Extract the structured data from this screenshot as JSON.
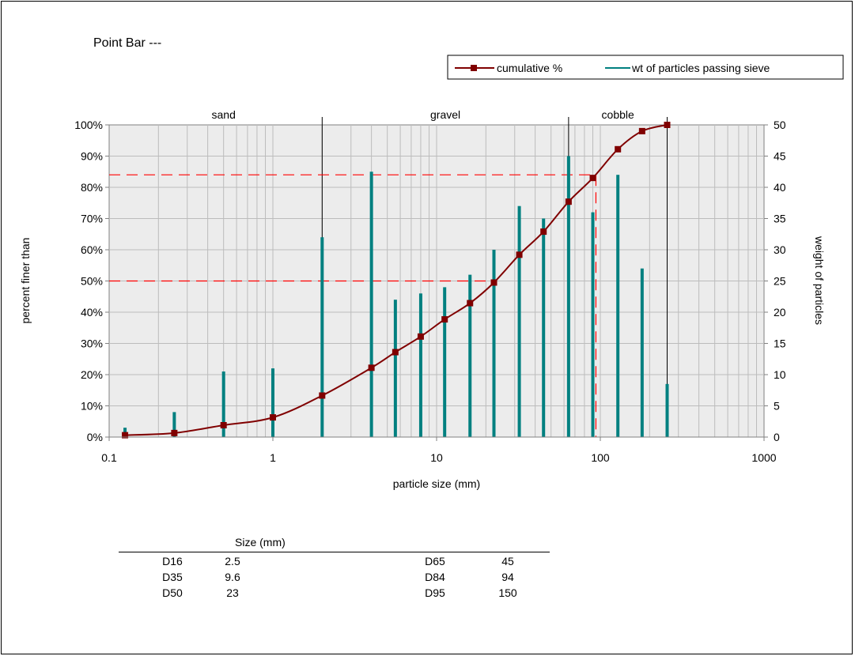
{
  "title": "Point Bar ---",
  "legend": {
    "cumulative_label": "cumulative %",
    "weight_label": "wt of particles passing sieve"
  },
  "zones": [
    {
      "name": "sand",
      "from": 0.125,
      "to": 2
    },
    {
      "name": "gravel",
      "from": 2,
      "to": 64
    },
    {
      "name": "cobble",
      "from": 64,
      "to": 256
    }
  ],
  "stats_table": {
    "header": "Size (mm)",
    "rows": [
      {
        "d1": "D16",
        "v1": "2.5",
        "d2": "D65",
        "v2": "45"
      },
      {
        "d1": "D35",
        "v1": "9.6",
        "d2": "D84",
        "v2": "94"
      },
      {
        "d1": "D50",
        "v1": "23",
        "d2": "D95",
        "v2": "150"
      }
    ]
  },
  "colors": {
    "cumulative": "#800000",
    "weight": "#008080",
    "reference": "#ff0000",
    "plot_background": "#ececec"
  },
  "chart_data": {
    "type": "line",
    "xlabel": "particle size (mm)",
    "ylabel": "percent finer than",
    "y2label": "weight of particles",
    "x_scale": "log",
    "xlim": [
      0.1,
      1000
    ],
    "ylim": [
      0,
      100
    ],
    "y2lim": [
      0,
      50
    ],
    "x_ticks": [
      "0.1",
      "1",
      "10",
      "100",
      "1000"
    ],
    "y_ticks": [
      "0%",
      "10%",
      "20%",
      "30%",
      "40%",
      "50%",
      "60%",
      "70%",
      "80%",
      "90%",
      "100%"
    ],
    "y2_ticks": [
      "0",
      "5",
      "10",
      "15",
      "20",
      "25",
      "30",
      "35",
      "40",
      "45",
      "50"
    ],
    "grid": true,
    "legend_position": "top-right",
    "series": [
      {
        "name": "cumulative %",
        "axis": "left",
        "style": "line-square-markers",
        "x": [
          0.125,
          0.25,
          0.5,
          1,
          2,
          4,
          5.6,
          8,
          11.2,
          16,
          22.4,
          32,
          45,
          64,
          90,
          128,
          180,
          256
        ],
        "y": [
          0.6,
          1.3,
          3.8,
          6.3,
          13.3,
          22.2,
          27.2,
          32.2,
          37.7,
          42.9,
          49.5,
          58.4,
          65.8,
          75.4,
          83.0,
          92.2,
          98.0,
          100
        ]
      },
      {
        "name": "wt of particles passing sieve",
        "axis": "right",
        "style": "vertical-bars",
        "x": [
          0.125,
          0.25,
          0.5,
          1,
          2,
          4,
          5.6,
          8,
          11.2,
          16,
          22.4,
          32,
          45,
          64,
          90,
          128,
          180,
          256
        ],
        "y": [
          1.5,
          4,
          10.5,
          11,
          32,
          42.5,
          22,
          23,
          24,
          26,
          30,
          37,
          35,
          45,
          36,
          42,
          27,
          8.5
        ]
      }
    ],
    "reference_lines": [
      {
        "value_percent": 84,
        "size_mm": 94
      },
      {
        "value_percent": 50,
        "size_mm": 23
      }
    ]
  }
}
